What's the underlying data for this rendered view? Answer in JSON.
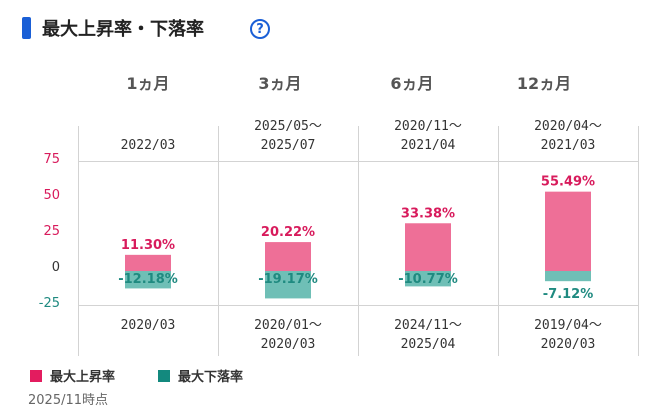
{
  "header": {
    "title": "最大上昇率・下落率",
    "help_icon": "help-circle-icon",
    "help_glyph": "?"
  },
  "periods": [
    {
      "label": "1ヵ月",
      "rise_date": "2022/03",
      "fall_date": "2020/03"
    },
    {
      "label": "3ヵ月",
      "rise_date": "2025/05〜 2025/07",
      "fall_date": "2020/01〜 2020/03"
    },
    {
      "label": "6ヵ月",
      "rise_date": "2020/11〜 2021/04",
      "fall_date": "2024/11〜 2025/04"
    },
    {
      "label": "12ヵ月",
      "rise_date": "2020/04〜 2021/03",
      "fall_date": "2019/04〜 2020/03"
    }
  ],
  "legend": {
    "rise_label": "最大上昇率",
    "fall_label": "最大下落率"
  },
  "note": "2025/11時点",
  "colors": {
    "rise": "#ee6f97",
    "fall": "#6fbfb6",
    "rise_text": "#d81b5c",
    "fall_text": "#1f8a80",
    "accent": "#1a5fd6"
  },
  "chart_data": {
    "type": "bar",
    "categories": [
      "1ヵ月",
      "3ヵ月",
      "6ヵ月",
      "12ヵ月"
    ],
    "series": [
      {
        "name": "最大上昇率",
        "values": [
          11.3,
          20.22,
          33.38,
          55.49
        ],
        "labels": [
          "11.30%",
          "20.22%",
          "33.38%",
          "55.49%"
        ]
      },
      {
        "name": "最大下落率",
        "values": [
          -12.18,
          -19.17,
          -10.77,
          -7.12
        ],
        "labels": [
          "-12.18%",
          "-19.17%",
          "-10.77%",
          "-7.12%"
        ]
      }
    ],
    "yticks": [
      "75",
      "50",
      "25",
      "0",
      "-25"
    ],
    "ylim": [
      -25,
      75
    ],
    "title": "",
    "xlabel": "",
    "ylabel": ""
  }
}
